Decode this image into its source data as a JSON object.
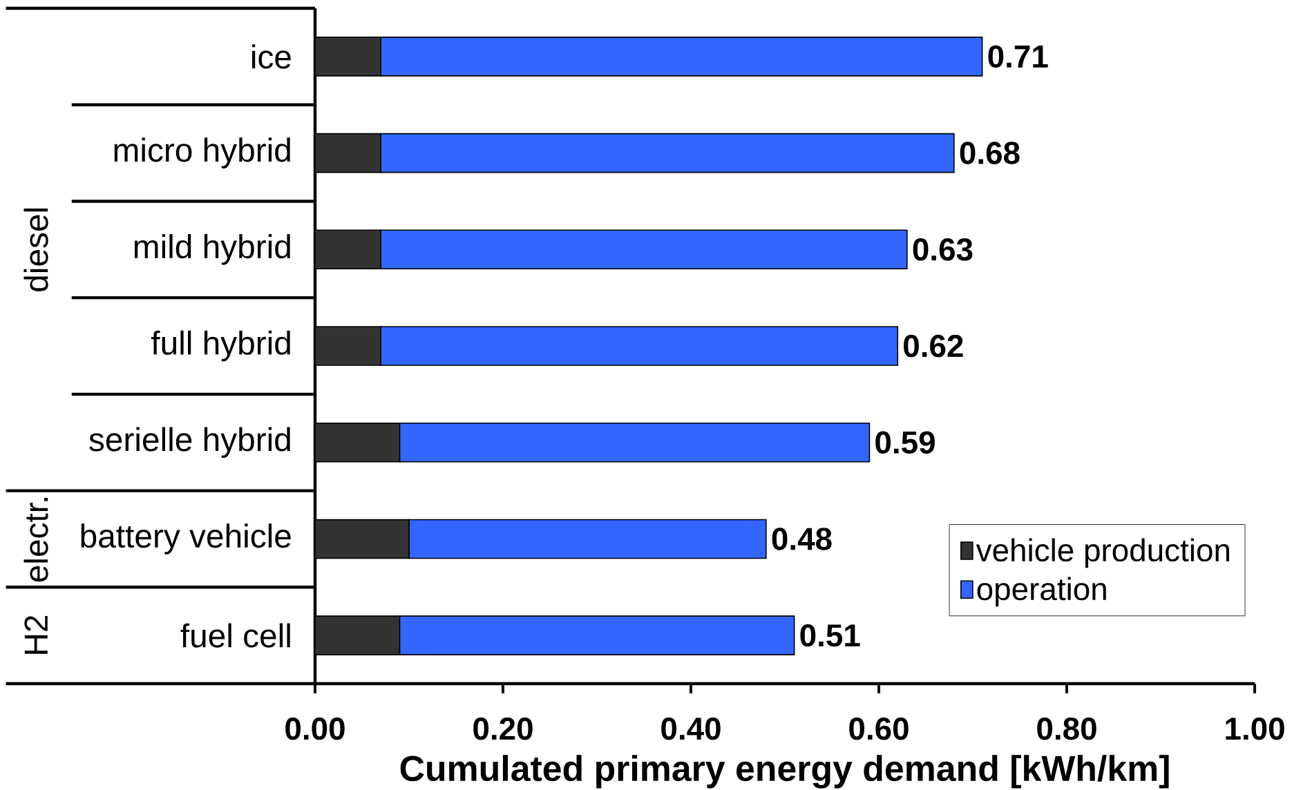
{
  "chart_data": {
    "type": "bar",
    "orientation": "horizontal",
    "stacked": true,
    "categories": [
      "ice",
      "micro hybrid",
      "mild hybrid",
      "full hybrid",
      "serielle hybrid",
      "battery vehicle",
      "fuel cell"
    ],
    "series": [
      {
        "name": "vehicle production",
        "color": "#333333",
        "values": [
          0.07,
          0.07,
          0.07,
          0.07,
          0.09,
          0.1,
          0.09
        ]
      },
      {
        "name": "operation",
        "color": "#3366ff",
        "values": [
          0.64,
          0.61,
          0.56,
          0.55,
          0.5,
          0.38,
          0.42
        ]
      }
    ],
    "totals": [
      "0.71",
      "0.68",
      "0.63",
      "0.62",
      "0.59",
      "0.48",
      "0.51"
    ],
    "xlabel": "Cumulated primary energy demand [kWh/km]",
    "xlim": [
      0,
      1
    ],
    "xticks": [
      {
        "value": 0,
        "label": "0.00"
      },
      {
        "value": 0.2,
        "label": "0.20"
      },
      {
        "value": 0.4,
        "label": "0.40"
      },
      {
        "value": 0.6,
        "label": "0.60"
      },
      {
        "value": 0.8,
        "label": "0.80"
      },
      {
        "value": 1.0,
        "label": "1.00"
      }
    ],
    "annotations": [
      "diesel",
      "electr.",
      "H2"
    ],
    "legend": "bottom right",
    "grid": false
  }
}
